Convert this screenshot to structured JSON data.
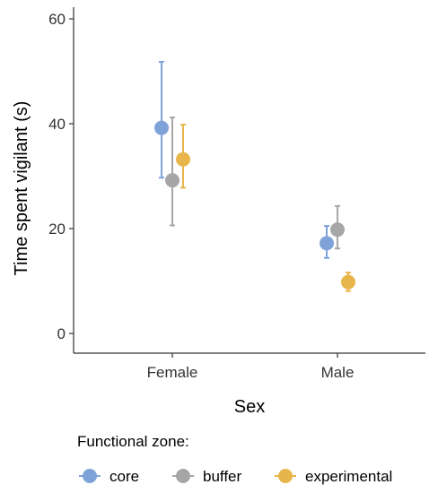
{
  "chart_data": {
    "type": "scatter",
    "title": "",
    "xlabel": "Sex",
    "ylabel": "Time spent vigilant (s)",
    "ylim": [
      0,
      62
    ],
    "yticks": [
      0,
      20,
      40,
      60
    ],
    "categories": [
      "Female",
      "Male"
    ],
    "grid": false,
    "legend": {
      "title": "Functional zone:",
      "position": "bottom"
    },
    "series": [
      {
        "name": "core",
        "color": "#7fa3d9",
        "values": [
          39.2,
          17.2
        ],
        "lower": [
          29.7,
          14.4
        ],
        "upper": [
          51.8,
          20.5
        ]
      },
      {
        "name": "buffer",
        "color": "#a6a6a6",
        "values": [
          29.2,
          19.8
        ],
        "lower": [
          20.6,
          16.2
        ],
        "upper": [
          41.2,
          24.3
        ]
      },
      {
        "name": "experimental",
        "color": "#e8b54a",
        "values": [
          33.2,
          9.8
        ],
        "lower": [
          27.8,
          8.1
        ],
        "upper": [
          39.8,
          11.6
        ]
      }
    ]
  }
}
